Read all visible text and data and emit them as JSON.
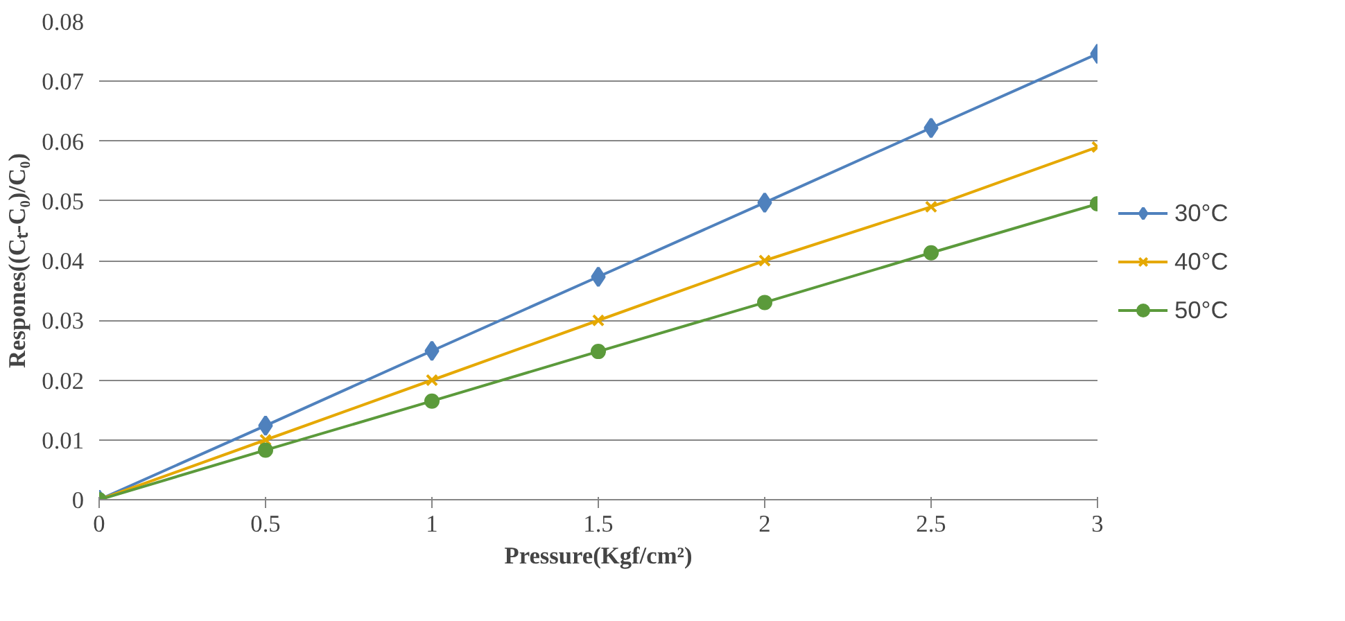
{
  "chart_data": {
    "type": "line",
    "xlabel": "Pressure(Kgf/cm²)",
    "ylabel": "Respones((Cₜ-C₀)/C₀)",
    "x": [
      0,
      0.5,
      1,
      1.5,
      2,
      2.5,
      3
    ],
    "series": [
      {
        "name": "30°C",
        "color": "#4f81bd",
        "marker": "diamond",
        "values": [
          0,
          0.0124,
          0.0249,
          0.0373,
          0.0497,
          0.0622,
          0.0746
        ]
      },
      {
        "name": "40°C",
        "color": "#e5a800",
        "marker": "cross",
        "values": [
          0,
          0.01,
          0.02,
          0.03,
          0.04,
          0.049,
          0.059
        ]
      },
      {
        "name": "50°C",
        "color": "#5b9a3b",
        "marker": "circle",
        "values": [
          0,
          0.0083,
          0.0165,
          0.0248,
          0.033,
          0.0413,
          0.0495
        ]
      }
    ],
    "xlim": [
      0,
      3
    ],
    "xticks": [
      0,
      0.5,
      1,
      1.5,
      2,
      2.5,
      3
    ],
    "ylim": [
      0,
      0.08
    ],
    "yticks": [
      0,
      0.01,
      0.02,
      0.03,
      0.04,
      0.05,
      0.06,
      0.07,
      0.08
    ],
    "grid": "y",
    "legend": "right",
    "line_style": "solid"
  }
}
